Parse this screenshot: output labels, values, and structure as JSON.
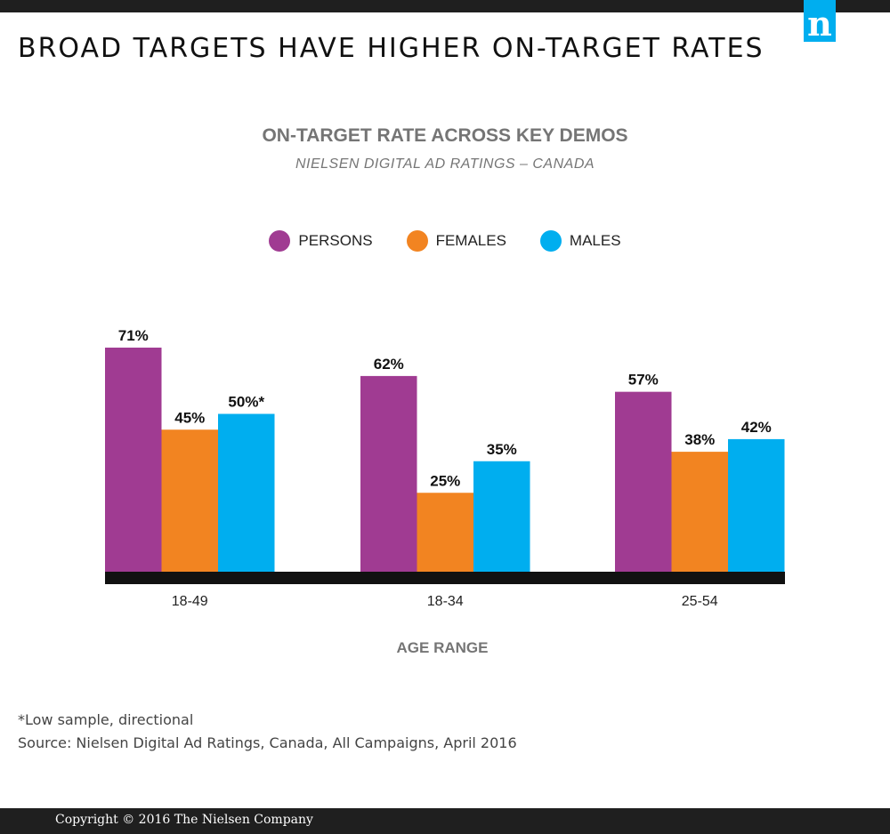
{
  "header": {
    "title": "BROAD TARGETS HAVE HIGHER ON-TARGET RATES",
    "logo_letter": "n"
  },
  "chart_data": {
    "type": "bar",
    "title": "ON-TARGET RATE ACROSS KEY DEMOS",
    "subtitle": "NIELSEN DIGITAL AD RATINGS – CANADA",
    "categories": [
      "18-49",
      "18-34",
      "25-54"
    ],
    "xlabel": "AGE RANGE",
    "ylabel": "",
    "ylim": [
      0,
      100
    ],
    "grid": false,
    "legend_position": "top-center",
    "series": [
      {
        "name": "PERSONS",
        "color": "#a03b92",
        "values": [
          71,
          62,
          57
        ],
        "labels": [
          "71%",
          "62%",
          "57%"
        ]
      },
      {
        "name": "FEMALES",
        "color": "#f28421",
        "values": [
          45,
          25,
          38
        ],
        "labels": [
          "45%",
          "25%",
          "38%"
        ]
      },
      {
        "name": "MALES",
        "color": "#00aeef",
        "values": [
          50,
          35,
          42
        ],
        "labels": [
          "50%*",
          "35%",
          "42%"
        ]
      }
    ]
  },
  "notes": {
    "sample": "*Low sample, directional",
    "source": "Source: Nielsen Digital Ad Ratings, Canada, All Campaigns, April 2016"
  },
  "footer": {
    "copyright": "Copyright © 2016 The Nielsen Company"
  },
  "colors": {
    "brand": "#00aeef",
    "bar_dark": "#1f1f1f"
  }
}
